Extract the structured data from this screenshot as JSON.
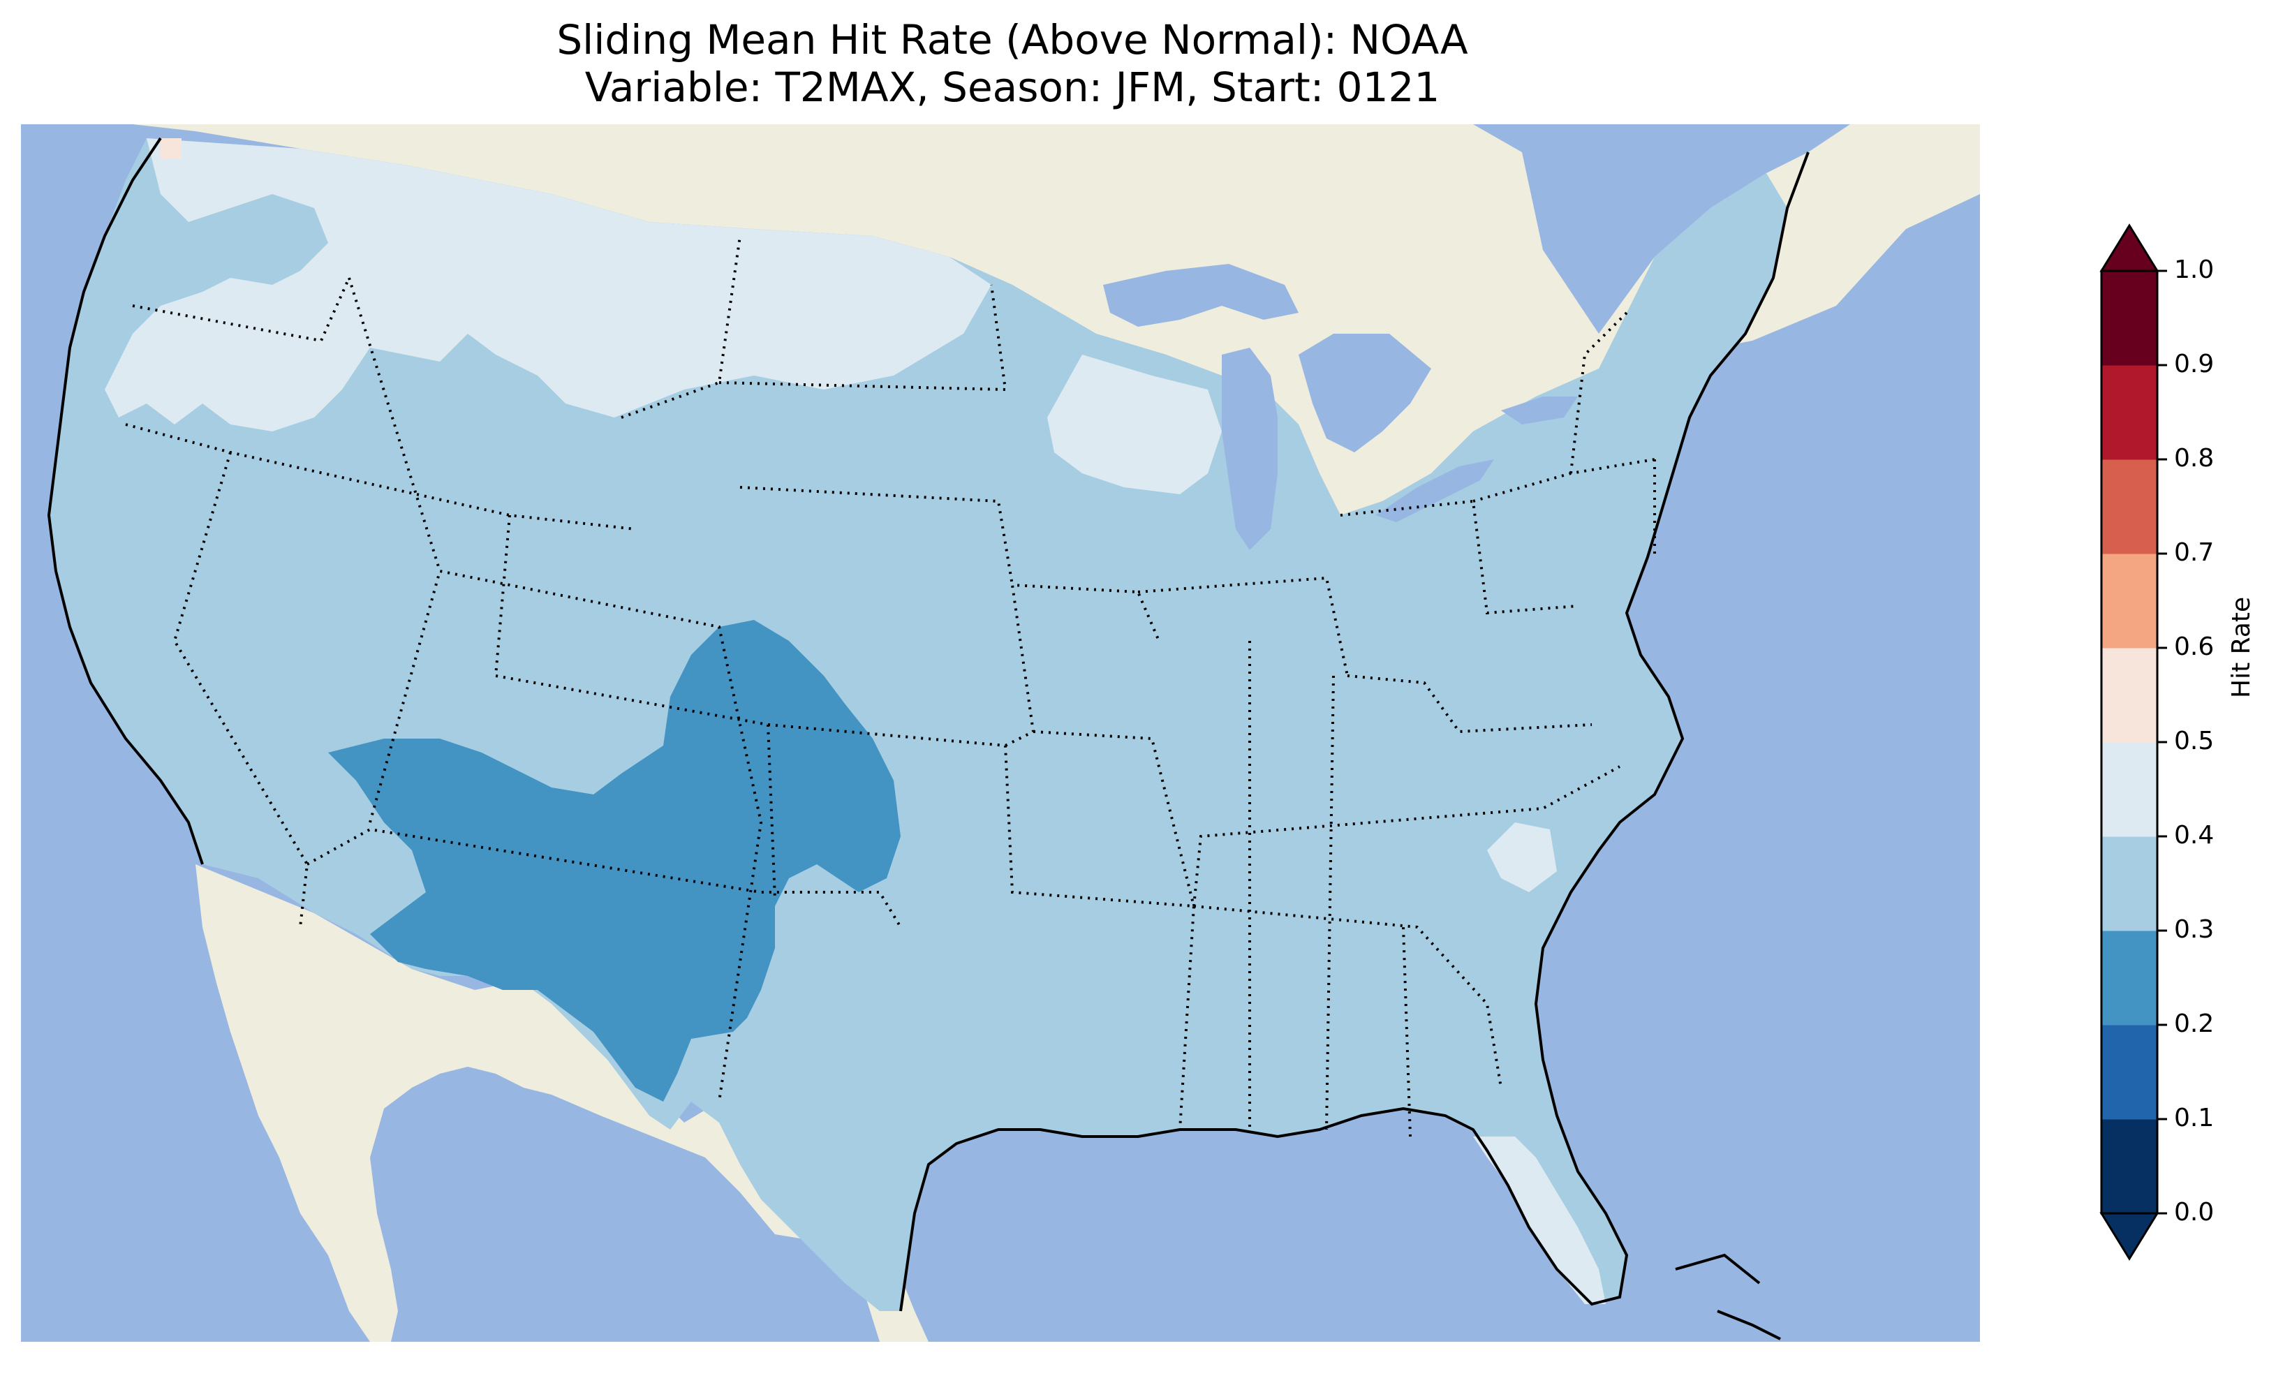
{
  "title": {
    "line1": "Sliding Mean Hit Rate (Above Normal): NOAA",
    "line2": "Variable: T2MAX, Season: JFM, Start: 0121"
  },
  "map": {
    "region": "contiguous United States",
    "ocean_color": "#97b6e1",
    "land_color": "#efedde",
    "borders": "state boundaries dotted, coastline solid"
  },
  "colorbar": {
    "label": "Hit Rate",
    "ticks": [
      "0.0",
      "0.1",
      "0.2",
      "0.3",
      "0.4",
      "0.5",
      "0.6",
      "0.7",
      "0.8",
      "0.9",
      "1.0"
    ],
    "bins": [
      {
        "range": [
          0.0,
          0.1
        ],
        "color": "#053061"
      },
      {
        "range": [
          0.1,
          0.2
        ],
        "color": "#2166ac"
      },
      {
        "range": [
          0.2,
          0.3
        ],
        "color": "#4393c3"
      },
      {
        "range": [
          0.3,
          0.4
        ],
        "color": "#a6cde2"
      },
      {
        "range": [
          0.4,
          0.5
        ],
        "color": "#ddeaf2"
      },
      {
        "range": [
          0.5,
          0.6
        ],
        "color": "#f7e5dc"
      },
      {
        "range": [
          0.6,
          0.7
        ],
        "color": "#f4a582"
      },
      {
        "range": [
          0.7,
          0.8
        ],
        "color": "#d6604d"
      },
      {
        "range": [
          0.8,
          0.9
        ],
        "color": "#b2182b"
      },
      {
        "range": [
          0.9,
          1.0
        ],
        "color": "#67001f"
      }
    ],
    "extend": "both"
  },
  "regions": [
    {
      "name": "Southwest / Four Corners",
      "value_bin": "0.2-0.3"
    },
    {
      "name": "Northern Plains & Upper Midwest",
      "value_bin": "0.4-0.5"
    },
    {
      "name": "Pacific Northwest interior",
      "value_bin": "0.4-0.5"
    },
    {
      "name": "Florida Peninsula",
      "value_bin": "0.4-0.5"
    },
    {
      "name": "Most of CONUS",
      "value_bin": "0.3-0.4"
    },
    {
      "name": "NW Washington coast pixel",
      "value_bin": "0.5-0.6"
    }
  ]
}
